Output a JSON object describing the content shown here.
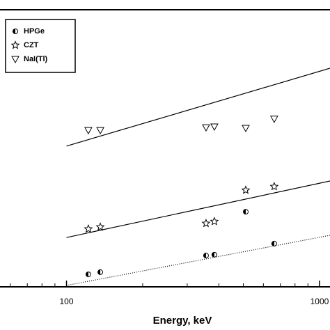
{
  "chart_data": {
    "type": "scatter",
    "x_label": "Energy, keV",
    "xscale": "log",
    "xlim": [
      54.6,
      1100
    ],
    "xticks": [
      100,
      1000
    ],
    "ylim": [
      0,
      100
    ],
    "x": [
      122,
      136,
      356,
      384,
      511,
      662
    ],
    "series": [
      {
        "name": "HPGe",
        "color": "#000000",
        "marker": "circle",
        "values": [
          4.5,
          5.3,
          11.3,
          11.6,
          27.1,
          15.6
        ]
      },
      {
        "name": "CZT",
        "color": "#000000",
        "marker": "star",
        "values": [
          20.9,
          21.6,
          22.9,
          23.6,
          34.9,
          36.2
        ]
      },
      {
        "name": "NaI(Tl)",
        "color": "#000000",
        "marker": "triangle",
        "values": [
          56.5,
          56.5,
          57.5,
          57.8,
          57.3,
          60.6
        ]
      }
    ],
    "fits": [
      {
        "x": [
          100,
          1100
        ],
        "values": [
          0.5,
          18.6
        ],
        "dash": "1,2"
      },
      {
        "x": [
          100,
          1100
        ],
        "values": [
          17.8,
          38.2
        ],
        "dash": ""
      },
      {
        "x": [
          100,
          1100
        ],
        "values": [
          50.8,
          78.9
        ],
        "dash": ""
      }
    ],
    "legend": "upper left"
  }
}
